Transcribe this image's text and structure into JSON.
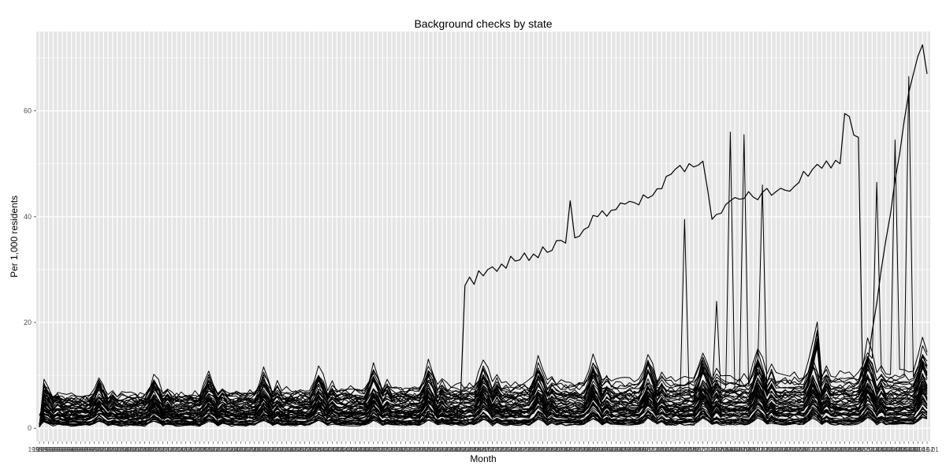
{
  "chart_data": {
    "type": "line",
    "title": "Background checks by state",
    "xlabel": "Month",
    "ylabel": "Per 1,000 residents",
    "ylim": [
      -2.5,
      75
    ],
    "yticks": [
      0,
      20,
      40,
      60
    ],
    "x_first_label": "1998-11",
    "x_last_label": "2015-01",
    "x_interval": "monthly",
    "grid": true,
    "legend": "none",
    "line_color": "#000000",
    "panel_color": "#e5e5e5",
    "grid_color": "#ffffff",
    "series_count": 55,
    "series": [
      {
        "values_sample": "dominant outlier series",
        "keypoints": [
          {
            "x": "2006-07",
            "y": 5
          },
          {
            "x": "2006-08",
            "y": 27
          },
          {
            "x": "2007-01",
            "y": 30
          },
          {
            "x": "2008-06",
            "y": 35
          },
          {
            "x": "2008-07",
            "y": 43
          },
          {
            "x": "2008-08",
            "y": 36
          },
          {
            "x": "2009-01",
            "y": 40
          },
          {
            "x": "2010-01",
            "y": 44
          },
          {
            "x": "2010-06",
            "y": 49
          },
          {
            "x": "2010-12",
            "y": 50.5
          },
          {
            "x": "2011-02",
            "y": 39.5
          },
          {
            "x": "2011-06",
            "y": 43
          },
          {
            "x": "2012-06",
            "y": 45
          },
          {
            "x": "2012-12",
            "y": 49
          },
          {
            "x": "2013-06",
            "y": 50
          },
          {
            "x": "2013-07",
            "y": 59.5
          },
          {
            "x": "2013-10",
            "y": 55
          },
          {
            "x": "2013-11",
            "y": 6
          },
          {
            "x": "2014-06",
            "y": 47
          },
          {
            "x": "2014-09",
            "y": 63.5
          },
          {
            "x": "2014-12",
            "y": 72.5
          },
          {
            "x": "2015-01",
            "y": 67
          }
        ]
      }
    ],
    "baseline_band": {
      "low": 0.5,
      "high": 11,
      "seasonal_peak_months": [
        12,
        1
      ]
    }
  }
}
